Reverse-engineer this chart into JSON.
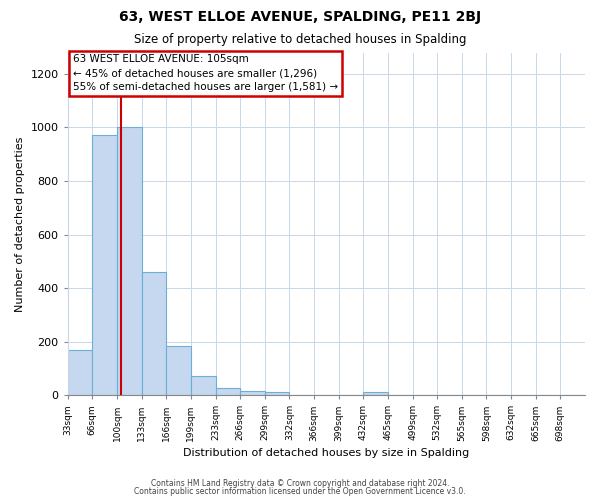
{
  "title1": "63, WEST ELLOE AVENUE, SPALDING, PE11 2BJ",
  "title2": "Size of property relative to detached houses in Spalding",
  "xlabel": "Distribution of detached houses by size in Spalding",
  "ylabel": "Number of detached properties",
  "bin_labels": [
    "33sqm",
    "66sqm",
    "100sqm",
    "133sqm",
    "166sqm",
    "199sqm",
    "233sqm",
    "266sqm",
    "299sqm",
    "332sqm",
    "366sqm",
    "399sqm",
    "432sqm",
    "465sqm",
    "499sqm",
    "532sqm",
    "565sqm",
    "598sqm",
    "632sqm",
    "665sqm",
    "698sqm"
  ],
  "bar_heights": [
    170,
    970,
    1000,
    460,
    185,
    70,
    25,
    15,
    10,
    0,
    0,
    0,
    10,
    0,
    0,
    0,
    0,
    0,
    0,
    0,
    0
  ],
  "bar_color": "#c5d8f0",
  "bar_edge_color": "#6baed6",
  "vline_color": "#cc0000",
  "annotation_line1": "63 WEST ELLOE AVENUE: 105sqm",
  "annotation_line2": "← 45% of detached houses are smaller (1,296)",
  "annotation_line3": "55% of semi-detached houses are larger (1,581) →",
  "annotation_box_edgecolor": "#cc0000",
  "ylim": [
    0,
    1280
  ],
  "yticks": [
    0,
    200,
    400,
    600,
    800,
    1000,
    1200
  ],
  "footer1": "Contains HM Land Registry data © Crown copyright and database right 2024.",
  "footer2": "Contains public sector information licensed under the Open Government Licence v3.0.",
  "bg_color": "#ffffff",
  "plot_bg_color": "#ffffff",
  "grid_color": "#c8d8ec"
}
